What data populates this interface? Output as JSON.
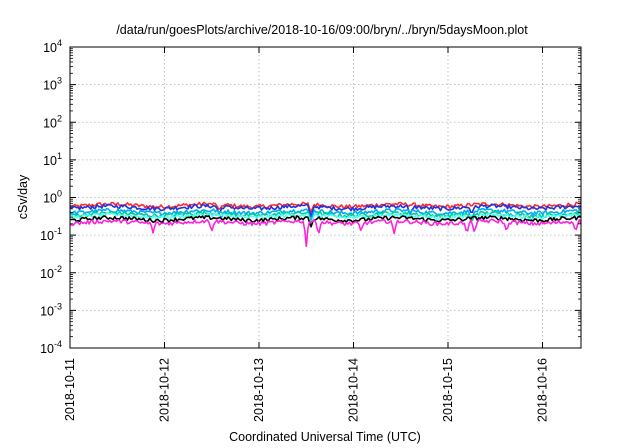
{
  "chart_data": {
    "type": "line",
    "title": "/data/run/goesPlots/archive/2018-10-16/09:00/bryn/../bryn/5daysMoon.plot",
    "xlabel": "Coordinated Universal Time (UTC)",
    "ylabel": "cSv/day",
    "y_scale": "log",
    "ylim": [
      0.0001,
      10000
    ],
    "xlim": [
      "2018-10-11T00:00",
      "2018-10-16T09:00"
    ],
    "grid": true,
    "legend": "none",
    "x_ticks": [
      "2018-10-11",
      "2018-10-12",
      "2018-10-13",
      "2018-10-14",
      "2018-10-15",
      "2018-10-16"
    ],
    "y_ticks": [
      {
        "value": 0.0001,
        "base": "10",
        "exp": "-4"
      },
      {
        "value": 0.001,
        "base": "10",
        "exp": "-3"
      },
      {
        "value": 0.01,
        "base": "10",
        "exp": "-2"
      },
      {
        "value": 0.1,
        "base": "10",
        "exp": "-1"
      },
      {
        "value": 1,
        "base": "10",
        "exp": "0"
      },
      {
        "value": 10,
        "base": "10",
        "exp": "1"
      },
      {
        "value": 100,
        "base": "10",
        "exp": "2"
      },
      {
        "value": 1000,
        "base": "10",
        "exp": "3"
      },
      {
        "value": 10000,
        "base": "10",
        "exp": "4"
      }
    ],
    "series": [
      {
        "color": "#ff2a2a",
        "base": 0.62,
        "values_note": "",
        "dips": [
          [
            1.58,
            0.45
          ],
          [
            2.55,
            0.4
          ],
          [
            5.55,
            0.3
          ],
          [
            5.83,
            0.2
          ]
        ]
      },
      {
        "color": "#2233dd",
        "base": 0.55,
        "dips": [
          [
            1.58,
            0.35
          ],
          [
            2.55,
            0.3
          ],
          [
            3.6,
            0.35
          ],
          [
            4.25,
            0.35
          ],
          [
            5.55,
            0.25
          ],
          [
            5.83,
            0.18
          ]
        ]
      },
      {
        "color": "#00aaff",
        "base": 0.42,
        "dips": [
          [
            1.6,
            0.28
          ],
          [
            2.55,
            0.22
          ],
          [
            4.25,
            0.25
          ],
          [
            5.55,
            0.2
          ],
          [
            5.83,
            0.15
          ]
        ]
      },
      {
        "color": "#00cc99",
        "base": 0.36,
        "dips": [
          [
            2.55,
            0.2
          ],
          [
            4.25,
            0.2
          ],
          [
            5.83,
            0.12
          ]
        ]
      },
      {
        "color": "#55ffee",
        "base": 0.32,
        "dips": [
          [
            2.55,
            0.18
          ],
          [
            5.83,
            0.11
          ]
        ]
      },
      {
        "color": "#000000",
        "base": 0.27,
        "dips": [
          [
            2.55,
            0.16
          ],
          [
            5.83,
            0.1
          ]
        ]
      },
      {
        "color": "#ff22dd",
        "base": 0.22,
        "dips": [
          [
            0.88,
            0.11
          ],
          [
            1.5,
            0.12
          ],
          [
            2.5,
            0.045
          ],
          [
            2.63,
            0.09
          ],
          [
            3.08,
            0.12
          ],
          [
            3.43,
            0.11
          ],
          [
            4.2,
            0.1
          ],
          [
            4.28,
            0.11
          ],
          [
            4.62,
            0.12
          ],
          [
            5.35,
            0.12
          ],
          [
            5.43,
            0.11
          ],
          [
            5.8,
            0.01
          ],
          [
            6.2,
            0.11
          ]
        ]
      }
    ]
  }
}
